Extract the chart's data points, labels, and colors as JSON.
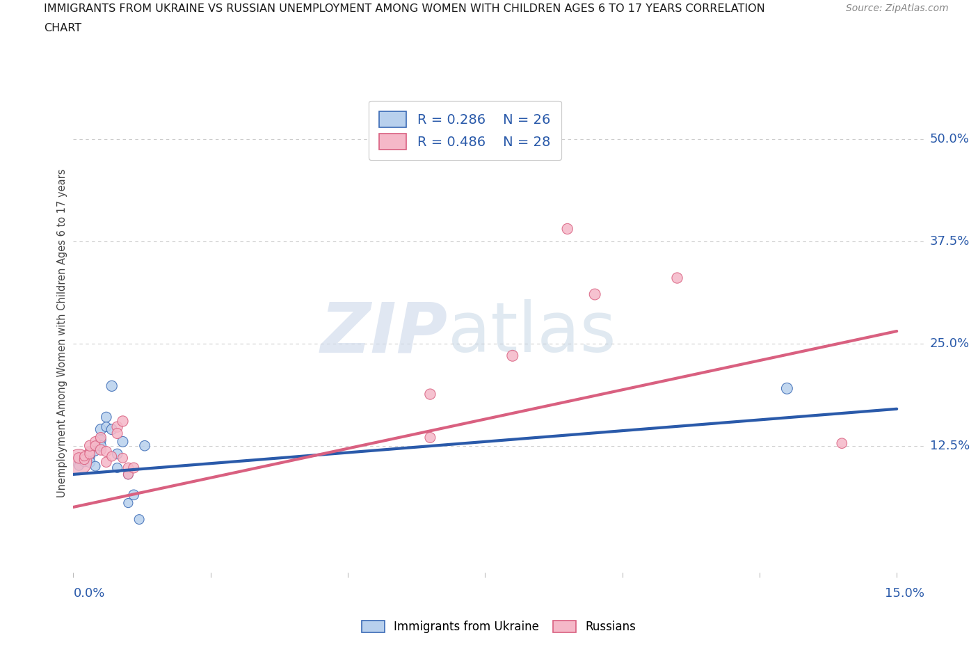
{
  "title_line1": "IMMIGRANTS FROM UKRAINE VS RUSSIAN UNEMPLOYMENT AMONG WOMEN WITH CHILDREN AGES 6 TO 17 YEARS CORRELATION",
  "title_line2": "CHART",
  "source": "Source: ZipAtlas.com",
  "ylabel": "Unemployment Among Women with Children Ages 6 to 17 years",
  "ytick_labels": [
    "12.5%",
    "25.0%",
    "37.5%",
    "50.0%"
  ],
  "ytick_vals": [
    0.125,
    0.25,
    0.375,
    0.5
  ],
  "legend_ukraine_R": "0.286",
  "legend_ukraine_N": "26",
  "legend_russian_R": "0.486",
  "legend_russian_N": "28",
  "ukraine_face_color": "#b8d0ed",
  "ukraine_edge_color": "#3a6ab5",
  "ukraine_line_color": "#2a5aaa",
  "russian_face_color": "#f5b8c8",
  "russian_edge_color": "#d96080",
  "russian_line_color": "#d96080",
  "ukraine_scatter_x": [
    0.001,
    0.001,
    0.001,
    0.002,
    0.002,
    0.003,
    0.003,
    0.003,
    0.004,
    0.004,
    0.005,
    0.005,
    0.005,
    0.006,
    0.006,
    0.007,
    0.007,
    0.008,
    0.008,
    0.009,
    0.01,
    0.01,
    0.011,
    0.012,
    0.013,
    0.13
  ],
  "ukraine_scatter_y": [
    0.102,
    0.108,
    0.1,
    0.105,
    0.11,
    0.112,
    0.115,
    0.105,
    0.118,
    0.1,
    0.132,
    0.145,
    0.125,
    0.16,
    0.148,
    0.198,
    0.145,
    0.115,
    0.098,
    0.13,
    0.09,
    0.055,
    0.065,
    0.035,
    0.125,
    0.195
  ],
  "ukraine_scatter_s": [
    120,
    100,
    80,
    90,
    100,
    110,
    115,
    120,
    80,
    100,
    110,
    120,
    115,
    110,
    100,
    120,
    115,
    110,
    100,
    115,
    100,
    90,
    110,
    100,
    110,
    130
  ],
  "russian_scatter_x": [
    0.001,
    0.001,
    0.002,
    0.002,
    0.003,
    0.003,
    0.003,
    0.004,
    0.004,
    0.005,
    0.005,
    0.006,
    0.006,
    0.007,
    0.008,
    0.008,
    0.009,
    0.009,
    0.01,
    0.01,
    0.011,
    0.065,
    0.065,
    0.08,
    0.09,
    0.095,
    0.11,
    0.14
  ],
  "russian_scatter_y": [
    0.105,
    0.11,
    0.108,
    0.112,
    0.118,
    0.115,
    0.125,
    0.13,
    0.125,
    0.12,
    0.135,
    0.105,
    0.118,
    0.112,
    0.148,
    0.14,
    0.155,
    0.11,
    0.098,
    0.09,
    0.098,
    0.188,
    0.135,
    0.235,
    0.39,
    0.31,
    0.33,
    0.128
  ],
  "russian_scatter_s": [
    700,
    120,
    100,
    90,
    100,
    110,
    120,
    110,
    100,
    120,
    115,
    110,
    115,
    100,
    120,
    115,
    120,
    100,
    110,
    100,
    115,
    120,
    115,
    130,
    120,
    130,
    120,
    110
  ],
  "ukraine_trend_x": [
    0.0,
    0.15
  ],
  "ukraine_trend_y": [
    0.09,
    0.17
  ],
  "russian_trend_x": [
    0.0,
    0.15
  ],
  "russian_trend_y": [
    0.05,
    0.265
  ],
  "xlim": [
    0.0,
    0.155
  ],
  "ylim": [
    -0.03,
    0.555
  ],
  "bg_color": "#ffffff",
  "grid_color": "#cccccc",
  "axis_label_color": "#2a5aaa",
  "title_color": "#1a1a1a",
  "source_color": "#888888"
}
